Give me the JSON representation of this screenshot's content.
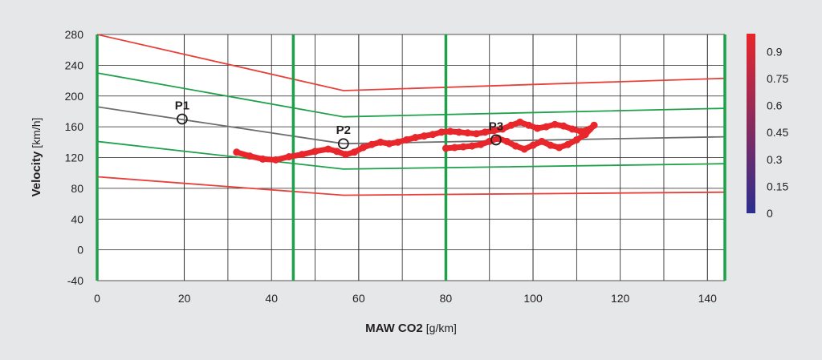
{
  "chart_data": {
    "type": "line",
    "xlabel": "MAW CO2",
    "xlabel_unit": "[g/km]",
    "ylabel": "Velocity",
    "ylabel_unit": "[km/h]",
    "xlim": [
      0,
      144
    ],
    "ylim": [
      -40,
      280
    ],
    "x_ticks": [
      0,
      20,
      40,
      60,
      80,
      100,
      120,
      140
    ],
    "y_ticks": [
      -40,
      0,
      40,
      80,
      120,
      160,
      200,
      240,
      280
    ],
    "grid": true,
    "colors": {
      "outer_band": "#e8403a",
      "inner_band": "#1fa14a",
      "center": "#6d6e71",
      "trace": "#e8262b",
      "frame": "#1fa14a"
    },
    "boundary_x": [
      0,
      45,
      80,
      144
    ],
    "series": [
      {
        "role": "outer_upper",
        "color": "outer_band",
        "points": [
          [
            0,
            280
          ],
          [
            56.5,
            207
          ],
          [
            144,
            223
          ]
        ]
      },
      {
        "role": "inner_upper",
        "color": "inner_band",
        "points": [
          [
            0,
            230
          ],
          [
            56.5,
            173
          ],
          [
            144,
            184
          ]
        ]
      },
      {
        "role": "center",
        "color": "center",
        "points": [
          [
            0,
            186
          ],
          [
            56.5,
            138
          ],
          [
            144,
            147
          ]
        ]
      },
      {
        "role": "inner_lower",
        "color": "inner_band",
        "points": [
          [
            0,
            141
          ],
          [
            56.5,
            105
          ],
          [
            144,
            112
          ]
        ]
      },
      {
        "role": "outer_lower",
        "color": "outer_band",
        "points": [
          [
            0,
            95
          ],
          [
            56.5,
            71
          ],
          [
            144,
            75
          ]
        ]
      }
    ],
    "points": [
      {
        "label": "P1",
        "x": 19.5,
        "y": 170
      },
      {
        "label": "P2",
        "x": 56.5,
        "y": 138
      },
      {
        "label": "P3",
        "x": 91.5,
        "y": 143
      }
    ],
    "trace": [
      [
        32,
        127
      ],
      [
        35,
        122
      ],
      [
        38,
        118
      ],
      [
        41,
        117
      ],
      [
        44,
        121
      ],
      [
        47,
        124
      ],
      [
        50,
        128
      ],
      [
        53,
        131
      ],
      [
        55,
        128
      ],
      [
        57,
        124
      ],
      [
        59,
        127
      ],
      [
        61,
        133
      ],
      [
        63,
        137
      ],
      [
        65,
        140
      ],
      [
        67,
        138
      ],
      [
        69,
        140
      ],
      [
        71,
        143
      ],
      [
        73,
        146
      ],
      [
        75,
        148
      ],
      [
        77,
        150
      ],
      [
        79,
        153
      ],
      [
        81,
        154
      ],
      [
        83,
        153
      ],
      [
        85,
        152
      ],
      [
        87,
        151
      ],
      [
        89,
        153
      ],
      [
        91,
        155
      ],
      [
        93,
        157
      ],
      [
        95,
        162
      ],
      [
        97,
        166
      ],
      [
        99,
        162
      ],
      [
        101,
        158
      ],
      [
        103,
        160
      ],
      [
        105,
        163
      ],
      [
        107,
        161
      ],
      [
        109,
        157
      ],
      [
        111,
        154
      ],
      [
        113,
        157
      ],
      [
        114,
        162
      ],
      [
        112,
        150
      ],
      [
        110,
        143
      ],
      [
        108,
        137
      ],
      [
        106,
        133
      ],
      [
        104,
        136
      ],
      [
        102,
        141
      ],
      [
        100,
        136
      ],
      [
        98,
        131
      ],
      [
        96,
        135
      ],
      [
        94,
        141
      ],
      [
        92,
        145
      ],
      [
        90,
        141
      ],
      [
        88,
        137
      ],
      [
        86,
        135
      ],
      [
        84,
        134
      ],
      [
        82,
        133
      ],
      [
        80,
        132
      ]
    ],
    "colorbar": {
      "ticks": [
        0,
        0.15,
        0.3,
        0.45,
        0.6,
        0.75,
        0.9
      ],
      "tick_labels": [
        "0",
        "0.15",
        "0.3",
        "0.45",
        "0.6",
        "0.75",
        "0.9"
      ],
      "range": [
        0,
        1
      ],
      "color_low": "#2b2f8f",
      "color_high": "#e8262b"
    }
  }
}
